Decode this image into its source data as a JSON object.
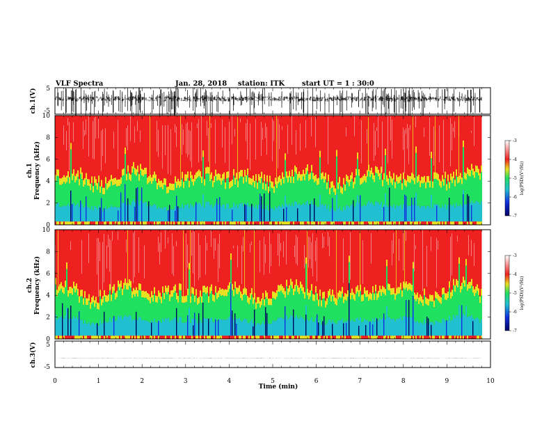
{
  "header": {
    "title": "VLF Spectra",
    "date": "Jan. 28, 2018",
    "station": "station: ITK",
    "start": "start UT = 1 : 30:0"
  },
  "chart_data": [
    {
      "type": "line",
      "id": "waveform-ch1",
      "ylabel": "ch.1(V)",
      "ylim": [
        -5,
        5
      ],
      "yticks": [
        "5",
        "-5"
      ],
      "xlim": [
        0,
        10
      ],
      "baseline": 0.8,
      "spread": 1.0,
      "spike_max": 6.5,
      "data_end_min": 9.8
    },
    {
      "type": "heatmap",
      "id": "spectrogram-ch1",
      "ylabel_line1": "ch.1",
      "ylabel_line2": "Frequency (kHz)",
      "ylim": [
        0,
        10
      ],
      "yticks": [
        "0",
        "2",
        "4",
        "6",
        "8",
        "10"
      ],
      "xlim": [
        0,
        10
      ],
      "data_end_min": 9.8,
      "colorbar": {
        "label": "log(PSD)(V²/Hz)",
        "range": [
          -7,
          -3
        ],
        "ticks": [
          "-3",
          "-4",
          "-5",
          "-6",
          "-7"
        ]
      }
    },
    {
      "type": "heatmap",
      "id": "spectrogram-ch2",
      "ylabel_line1": "ch.2",
      "ylabel_line2": "Frequency (kHz)",
      "ylim": [
        0,
        10
      ],
      "yticks": [
        "0",
        "2",
        "4",
        "6",
        "8",
        "10"
      ],
      "xlim": [
        0,
        10
      ],
      "data_end_min": 9.8,
      "colorbar": {
        "label": "log(PSD)(V²/Hz)",
        "range": [
          -7,
          -3
        ],
        "ticks": [
          "-3",
          "-4",
          "-5",
          "-6",
          "-7"
        ]
      }
    },
    {
      "type": "line",
      "id": "waveform-ch3",
      "ylabel": "ch.3(V)",
      "ylim": [
        -5,
        5
      ],
      "yticks": [
        "5",
        "-5"
      ],
      "xlim": [
        0,
        10
      ],
      "baseline": -1.5,
      "spread": 0.05,
      "spike_max": 0,
      "data_end_min": 9.8
    }
  ],
  "xaxis": {
    "label": "Time (min)",
    "ticks": [
      "0",
      "1",
      "2",
      "3",
      "4",
      "5",
      "6",
      "7",
      "8",
      "9",
      "10"
    ]
  },
  "colors": {
    "lowest": "#000060",
    "low": "#1030e0",
    "mid_low": "#20c0d0",
    "mid": "#20e060",
    "mid_high": "#e8e020",
    "high": "#ee2020",
    "top": "#ffffff"
  }
}
